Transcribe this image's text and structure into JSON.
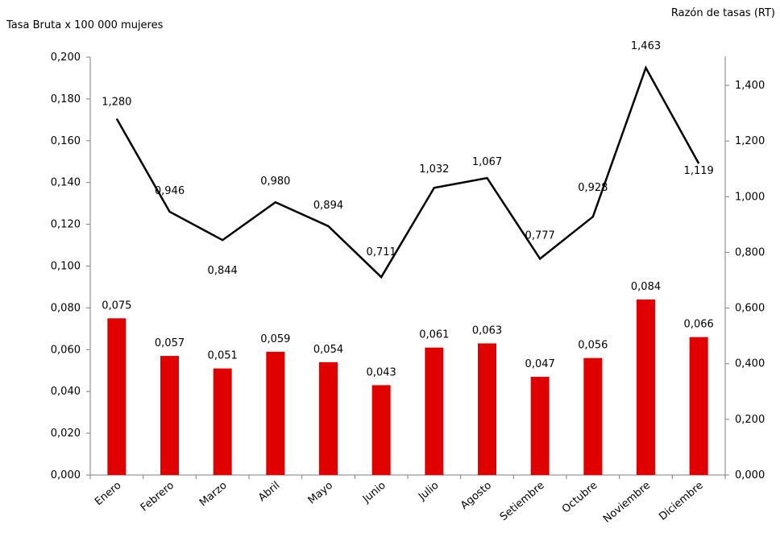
{
  "chart_data": {
    "type": "bar",
    "categories": [
      "Enero",
      "Febrero",
      "Marzo",
      "Abril",
      "Mayo",
      "Junio",
      "Julio",
      "Agosto",
      "Setiembre",
      "Octubre",
      "Noviembre",
      "Diciembre"
    ],
    "series": [
      {
        "type": "bar",
        "axis": "left",
        "color": "#e00000",
        "values": [
          0.075,
          0.057,
          0.051,
          0.059,
          0.054,
          0.043,
          0.061,
          0.063,
          0.047,
          0.056,
          0.084,
          0.066
        ],
        "labels": [
          "0,075",
          "0,057",
          "0,051",
          "0,059",
          "0,054",
          "0,043",
          "0,061",
          "0,063",
          "0,047",
          "0,056",
          "0,084",
          "0,066"
        ]
      },
      {
        "type": "line",
        "axis": "right",
        "color": "#000000",
        "values": [
          1.28,
          0.946,
          0.844,
          0.98,
          0.894,
          0.711,
          1.032,
          1.067,
          0.777,
          0.928,
          1.463,
          1.119
        ],
        "labels": [
          "1,280",
          "0,946",
          "0,844",
          "0,980",
          "0,894",
          "0,711",
          "1,032",
          "1,067",
          "0,777",
          "0,928",
          "1,463",
          "1,119"
        ]
      }
    ],
    "y_left": {
      "label": "Tasa Bruta x 100 000 mujeres",
      "range": [
        0,
        0.2
      ],
      "ticks": [
        "0,000",
        "0,020",
        "0,040",
        "0,060",
        "0,080",
        "0,100",
        "0,120",
        "0,140",
        "0,160",
        "0,180",
        "0,200"
      ]
    },
    "y_right": {
      "label": "Razón de tasas (RT)",
      "range": [
        0,
        1.5
      ],
      "ticks": [
        "0,000",
        "0,200",
        "0,400",
        "0,600",
        "0,800",
        "1,000",
        "1,200",
        "1,400"
      ]
    },
    "grid": false,
    "legend": "none"
  }
}
